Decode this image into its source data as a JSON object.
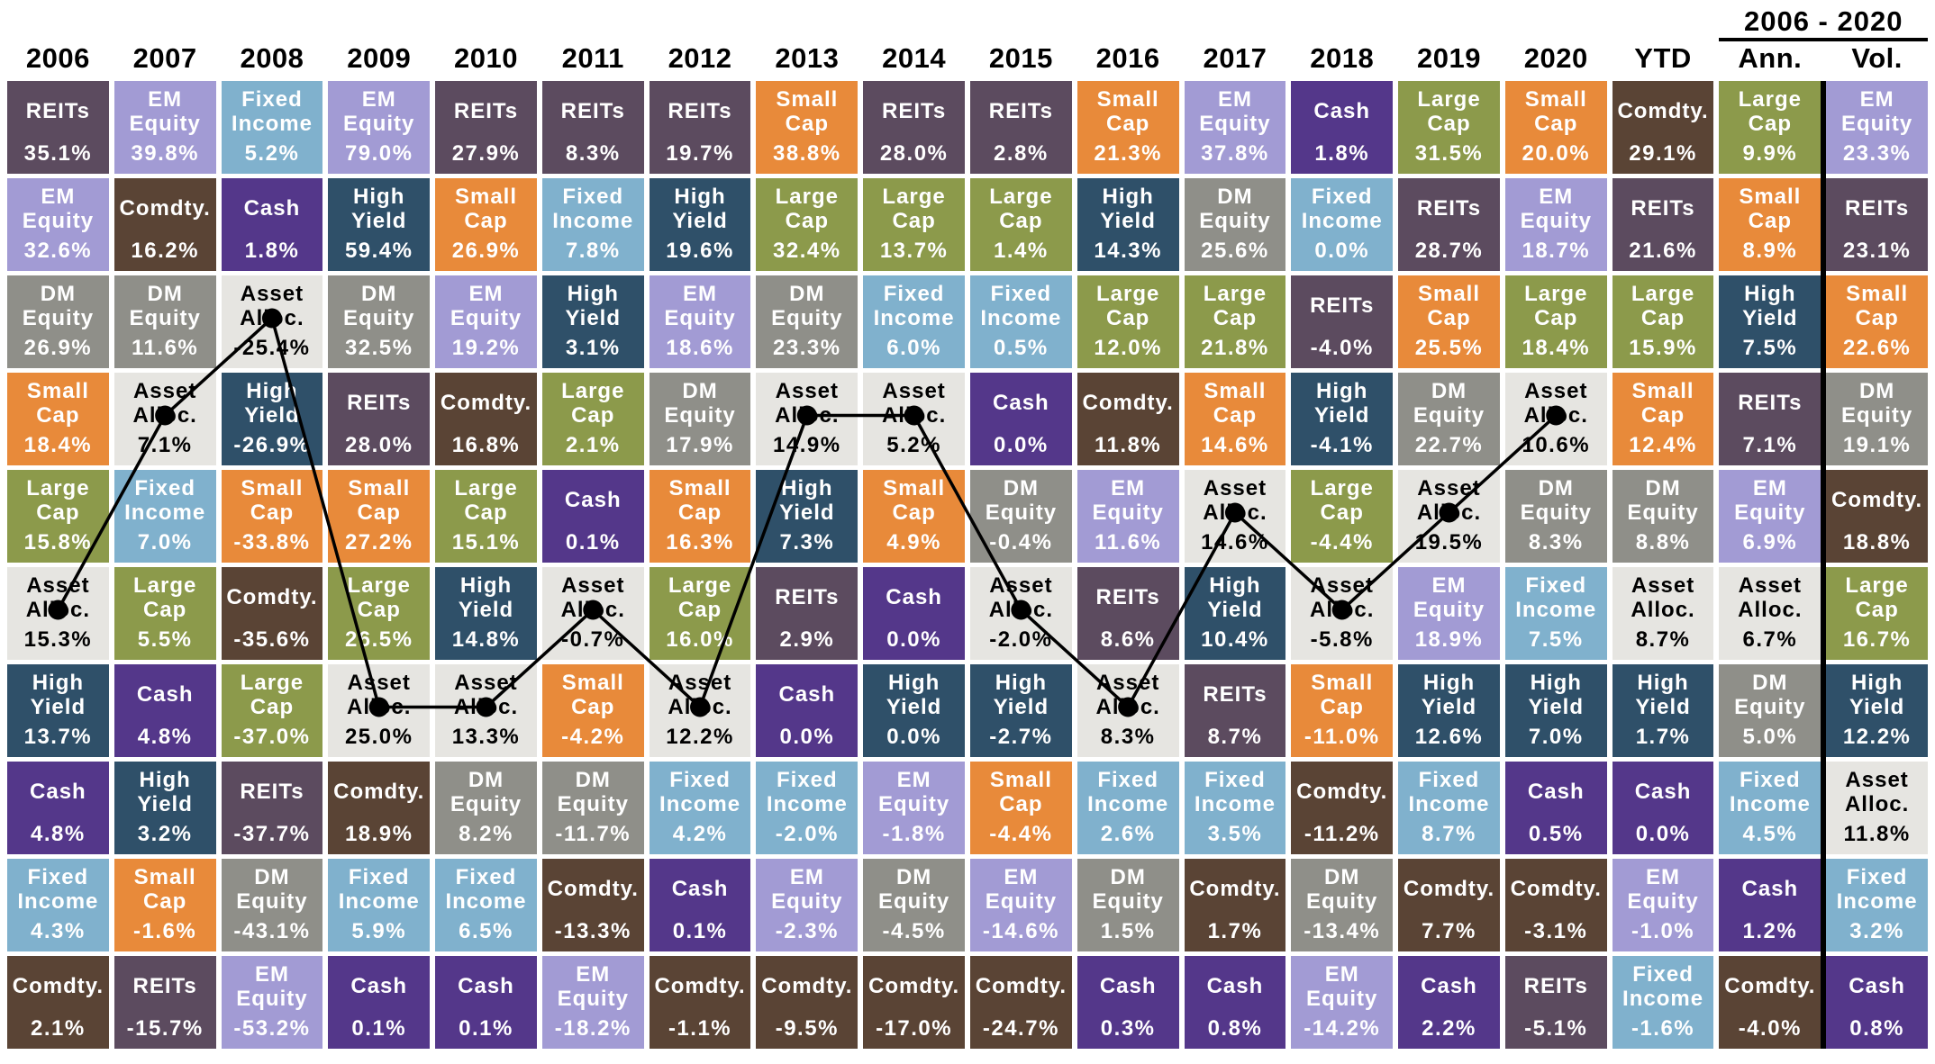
{
  "header": {
    "range_label": "2006 - 2020"
  },
  "colors": {
    "REITs": "#5C4B5F",
    "EM Equity": "#A29BD4",
    "Fixed Income": "#80B1CD",
    "Cash": "#54378A",
    "High Yield": "#2F5069",
    "Small Cap": "#E88A3A",
    "Large Cap": "#8C9A4B",
    "DM Equity": "#8F8F89",
    "Comdty.": "#5A4435",
    "Asset Alloc.": "#E6E5E1"
  },
  "text_colors": {
    "default": "#FFFFFF",
    "Asset Alloc.": "#000000"
  },
  "line_overlay": {
    "asset": "Asset Alloc.",
    "color": "#000000",
    "dot_radius": 11,
    "stroke_width": 3.5,
    "applies_to_column_type": "year"
  },
  "chart_data": {
    "type": "table",
    "description_visible_labels": [
      "2006 - 2020",
      "YTD",
      "Ann.",
      "Vol."
    ],
    "columns": [
      {
        "label": "2006",
        "type": "year",
        "cells": [
          {
            "asset": "REITs",
            "value": "35.1%"
          },
          {
            "asset": "EM Equity",
            "value": "32.6%"
          },
          {
            "asset": "DM Equity",
            "value": "26.9%"
          },
          {
            "asset": "Small Cap",
            "value": "18.4%"
          },
          {
            "asset": "Large Cap",
            "value": "15.8%"
          },
          {
            "asset": "Asset Alloc.",
            "value": "15.3%"
          },
          {
            "asset": "High Yield",
            "value": "13.7%"
          },
          {
            "asset": "Cash",
            "value": "4.8%"
          },
          {
            "asset": "Fixed Income",
            "value": "4.3%"
          },
          {
            "asset": "Comdty.",
            "value": "2.1%"
          }
        ]
      },
      {
        "label": "2007",
        "type": "year",
        "cells": [
          {
            "asset": "EM Equity",
            "value": "39.8%"
          },
          {
            "asset": "Comdty.",
            "value": "16.2%"
          },
          {
            "asset": "DM Equity",
            "value": "11.6%"
          },
          {
            "asset": "Asset Alloc.",
            "value": "7.1%"
          },
          {
            "asset": "Fixed Income",
            "value": "7.0%"
          },
          {
            "asset": "Large Cap",
            "value": "5.5%"
          },
          {
            "asset": "Cash",
            "value": "4.8%"
          },
          {
            "asset": "High Yield",
            "value": "3.2%"
          },
          {
            "asset": "Small Cap",
            "value": "-1.6%"
          },
          {
            "asset": "REITs",
            "value": "-15.7%"
          }
        ]
      },
      {
        "label": "2008",
        "type": "year",
        "cells": [
          {
            "asset": "Fixed Income",
            "value": "5.2%"
          },
          {
            "asset": "Cash",
            "value": "1.8%"
          },
          {
            "asset": "Asset Alloc.",
            "value": "-25.4%"
          },
          {
            "asset": "High Yield",
            "value": "-26.9%"
          },
          {
            "asset": "Small Cap",
            "value": "-33.8%"
          },
          {
            "asset": "Comdty.",
            "value": "-35.6%"
          },
          {
            "asset": "Large Cap",
            "value": "-37.0%"
          },
          {
            "asset": "REITs",
            "value": "-37.7%"
          },
          {
            "asset": "DM Equity",
            "value": "-43.1%"
          },
          {
            "asset": "EM Equity",
            "value": "-53.2%"
          }
        ]
      },
      {
        "label": "2009",
        "type": "year",
        "cells": [
          {
            "asset": "EM Equity",
            "value": "79.0%"
          },
          {
            "asset": "High Yield",
            "value": "59.4%"
          },
          {
            "asset": "DM Equity",
            "value": "32.5%"
          },
          {
            "asset": "REITs",
            "value": "28.0%"
          },
          {
            "asset": "Small Cap",
            "value": "27.2%"
          },
          {
            "asset": "Large Cap",
            "value": "26.5%"
          },
          {
            "asset": "Asset Alloc.",
            "value": "25.0%"
          },
          {
            "asset": "Comdty.",
            "value": "18.9%"
          },
          {
            "asset": "Fixed Income",
            "value": "5.9%"
          },
          {
            "asset": "Cash",
            "value": "0.1%"
          }
        ]
      },
      {
        "label": "2010",
        "type": "year",
        "cells": [
          {
            "asset": "REITs",
            "value": "27.9%"
          },
          {
            "asset": "Small Cap",
            "value": "26.9%"
          },
          {
            "asset": "EM Equity",
            "value": "19.2%"
          },
          {
            "asset": "Comdty.",
            "value": "16.8%"
          },
          {
            "asset": "Large Cap",
            "value": "15.1%"
          },
          {
            "asset": "High Yield",
            "value": "14.8%"
          },
          {
            "asset": "Asset Alloc.",
            "value": "13.3%"
          },
          {
            "asset": "DM Equity",
            "value": "8.2%"
          },
          {
            "asset": "Fixed Income",
            "value": "6.5%"
          },
          {
            "asset": "Cash",
            "value": "0.1%"
          }
        ]
      },
      {
        "label": "2011",
        "type": "year",
        "cells": [
          {
            "asset": "REITs",
            "value": "8.3%"
          },
          {
            "asset": "Fixed Income",
            "value": "7.8%"
          },
          {
            "asset": "High Yield",
            "value": "3.1%"
          },
          {
            "asset": "Large Cap",
            "value": "2.1%"
          },
          {
            "asset": "Cash",
            "value": "0.1%"
          },
          {
            "asset": "Asset Alloc.",
            "value": "-0.7%"
          },
          {
            "asset": "Small Cap",
            "value": "-4.2%"
          },
          {
            "asset": "DM Equity",
            "value": "-11.7%"
          },
          {
            "asset": "Comdty.",
            "value": "-13.3%"
          },
          {
            "asset": "EM Equity",
            "value": "-18.2%"
          }
        ]
      },
      {
        "label": "2012",
        "type": "year",
        "cells": [
          {
            "asset": "REITs",
            "value": "19.7%"
          },
          {
            "asset": "High Yield",
            "value": "19.6%"
          },
          {
            "asset": "EM Equity",
            "value": "18.6%"
          },
          {
            "asset": "DM Equity",
            "value": "17.9%"
          },
          {
            "asset": "Small Cap",
            "value": "16.3%"
          },
          {
            "asset": "Large Cap",
            "value": "16.0%"
          },
          {
            "asset": "Asset Alloc.",
            "value": "12.2%"
          },
          {
            "asset": "Fixed Income",
            "value": "4.2%"
          },
          {
            "asset": "Cash",
            "value": "0.1%"
          },
          {
            "asset": "Comdty.",
            "value": "-1.1%"
          }
        ]
      },
      {
        "label": "2013",
        "type": "year",
        "cells": [
          {
            "asset": "Small Cap",
            "value": "38.8%"
          },
          {
            "asset": "Large Cap",
            "value": "32.4%"
          },
          {
            "asset": "DM Equity",
            "value": "23.3%"
          },
          {
            "asset": "Asset Alloc.",
            "value": "14.9%"
          },
          {
            "asset": "High Yield",
            "value": "7.3%"
          },
          {
            "asset": "REITs",
            "value": "2.9%"
          },
          {
            "asset": "Cash",
            "value": "0.0%"
          },
          {
            "asset": "Fixed Income",
            "value": "-2.0%"
          },
          {
            "asset": "EM Equity",
            "value": "-2.3%"
          },
          {
            "asset": "Comdty.",
            "value": "-9.5%"
          }
        ]
      },
      {
        "label": "2014",
        "type": "year",
        "cells": [
          {
            "asset": "REITs",
            "value": "28.0%"
          },
          {
            "asset": "Large Cap",
            "value": "13.7%"
          },
          {
            "asset": "Fixed Income",
            "value": "6.0%"
          },
          {
            "asset": "Asset Alloc.",
            "value": "5.2%"
          },
          {
            "asset": "Small Cap",
            "value": "4.9%"
          },
          {
            "asset": "Cash",
            "value": "0.0%"
          },
          {
            "asset": "High Yield",
            "value": "0.0%"
          },
          {
            "asset": "EM Equity",
            "value": "-1.8%"
          },
          {
            "asset": "DM Equity",
            "value": "-4.5%"
          },
          {
            "asset": "Comdty.",
            "value": "-17.0%"
          }
        ]
      },
      {
        "label": "2015",
        "type": "year",
        "cells": [
          {
            "asset": "REITs",
            "value": "2.8%"
          },
          {
            "asset": "Large Cap",
            "value": "1.4%"
          },
          {
            "asset": "Fixed Income",
            "value": "0.5%"
          },
          {
            "asset": "Cash",
            "value": "0.0%"
          },
          {
            "asset": "DM Equity",
            "value": "-0.4%"
          },
          {
            "asset": "Asset Alloc.",
            "value": "-2.0%"
          },
          {
            "asset": "High Yield",
            "value": "-2.7%"
          },
          {
            "asset": "Small Cap",
            "value": "-4.4%"
          },
          {
            "asset": "EM Equity",
            "value": "-14.6%"
          },
          {
            "asset": "Comdty.",
            "value": "-24.7%"
          }
        ]
      },
      {
        "label": "2016",
        "type": "year",
        "cells": [
          {
            "asset": "Small Cap",
            "value": "21.3%"
          },
          {
            "asset": "High Yield",
            "value": "14.3%"
          },
          {
            "asset": "Large Cap",
            "value": "12.0%"
          },
          {
            "asset": "Comdty.",
            "value": "11.8%"
          },
          {
            "asset": "EM Equity",
            "value": "11.6%"
          },
          {
            "asset": "REITs",
            "value": "8.6%"
          },
          {
            "asset": "Asset Alloc.",
            "value": "8.3%"
          },
          {
            "asset": "Fixed Income",
            "value": "2.6%"
          },
          {
            "asset": "DM Equity",
            "value": "1.5%"
          },
          {
            "asset": "Cash",
            "value": "0.3%"
          }
        ]
      },
      {
        "label": "2017",
        "type": "year",
        "cells": [
          {
            "asset": "EM Equity",
            "value": "37.8%"
          },
          {
            "asset": "DM Equity",
            "value": "25.6%"
          },
          {
            "asset": "Large Cap",
            "value": "21.8%"
          },
          {
            "asset": "Small Cap",
            "value": "14.6%"
          },
          {
            "asset": "Asset Alloc.",
            "value": "14.6%"
          },
          {
            "asset": "High Yield",
            "value": "10.4%"
          },
          {
            "asset": "REITs",
            "value": "8.7%"
          },
          {
            "asset": "Fixed Income",
            "value": "3.5%"
          },
          {
            "asset": "Comdty.",
            "value": "1.7%"
          },
          {
            "asset": "Cash",
            "value": "0.8%"
          }
        ]
      },
      {
        "label": "2018",
        "type": "year",
        "cells": [
          {
            "asset": "Cash",
            "value": "1.8%"
          },
          {
            "asset": "Fixed Income",
            "value": "0.0%"
          },
          {
            "asset": "REITs",
            "value": "-4.0%"
          },
          {
            "asset": "High Yield",
            "value": "-4.1%"
          },
          {
            "asset": "Large Cap",
            "value": "-4.4%"
          },
          {
            "asset": "Asset Alloc.",
            "value": "-5.8%"
          },
          {
            "asset": "Small Cap",
            "value": "-11.0%"
          },
          {
            "asset": "Comdty.",
            "value": "-11.2%"
          },
          {
            "asset": "DM Equity",
            "value": "-13.4%"
          },
          {
            "asset": "EM Equity",
            "value": "-14.2%"
          }
        ]
      },
      {
        "label": "2019",
        "type": "year",
        "cells": [
          {
            "asset": "Large Cap",
            "value": "31.5%"
          },
          {
            "asset": "REITs",
            "value": "28.7%"
          },
          {
            "asset": "Small Cap",
            "value": "25.5%"
          },
          {
            "asset": "DM Equity",
            "value": "22.7%"
          },
          {
            "asset": "Asset Alloc.",
            "value": "19.5%"
          },
          {
            "asset": "EM Equity",
            "value": "18.9%"
          },
          {
            "asset": "High Yield",
            "value": "12.6%"
          },
          {
            "asset": "Fixed Income",
            "value": "8.7%"
          },
          {
            "asset": "Comdty.",
            "value": "7.7%"
          },
          {
            "asset": "Cash",
            "value": "2.2%"
          }
        ]
      },
      {
        "label": "2020",
        "type": "year",
        "cells": [
          {
            "asset": "Small Cap",
            "value": "20.0%"
          },
          {
            "asset": "EM Equity",
            "value": "18.7%"
          },
          {
            "asset": "Large Cap",
            "value": "18.4%"
          },
          {
            "asset": "Asset Alloc.",
            "value": "10.6%"
          },
          {
            "asset": "DM Equity",
            "value": "8.3%"
          },
          {
            "asset": "Fixed Income",
            "value": "7.5%"
          },
          {
            "asset": "High Yield",
            "value": "7.0%"
          },
          {
            "asset": "Cash",
            "value": "0.5%"
          },
          {
            "asset": "Comdty.",
            "value": "-3.1%"
          },
          {
            "asset": "REITs",
            "value": "-5.1%"
          }
        ]
      },
      {
        "label": "YTD",
        "type": "ytd",
        "cells": [
          {
            "asset": "Comdty.",
            "value": "29.1%"
          },
          {
            "asset": "REITs",
            "value": "21.6%"
          },
          {
            "asset": "Large Cap",
            "value": "15.9%"
          },
          {
            "asset": "Small Cap",
            "value": "12.4%"
          },
          {
            "asset": "DM Equity",
            "value": "8.8%"
          },
          {
            "asset": "Asset Alloc.",
            "value": "8.7%"
          },
          {
            "asset": "High Yield",
            "value": "1.7%"
          },
          {
            "asset": "Cash",
            "value": "0.0%"
          },
          {
            "asset": "EM Equity",
            "value": "-1.0%"
          },
          {
            "asset": "Fixed Income",
            "value": "-1.6%"
          }
        ]
      },
      {
        "label": "Ann.",
        "type": "summary",
        "cells": [
          {
            "asset": "Large Cap",
            "value": "9.9%"
          },
          {
            "asset": "Small Cap",
            "value": "8.9%"
          },
          {
            "asset": "High Yield",
            "value": "7.5%"
          },
          {
            "asset": "REITs",
            "value": "7.1%"
          },
          {
            "asset": "EM Equity",
            "value": "6.9%"
          },
          {
            "asset": "Asset Alloc.",
            "value": "6.7%"
          },
          {
            "asset": "DM Equity",
            "value": "5.0%"
          },
          {
            "asset": "Fixed Income",
            "value": "4.5%"
          },
          {
            "asset": "Cash",
            "value": "1.2%"
          },
          {
            "asset": "Comdty.",
            "value": "-4.0%"
          }
        ]
      },
      {
        "label": "Vol.",
        "type": "summary",
        "cells": [
          {
            "asset": "EM Equity",
            "value": "23.3%"
          },
          {
            "asset": "REITs",
            "value": "23.1%"
          },
          {
            "asset": "Small Cap",
            "value": "22.6%"
          },
          {
            "asset": "DM Equity",
            "value": "19.1%"
          },
          {
            "asset": "Comdty.",
            "value": "18.8%"
          },
          {
            "asset": "Large Cap",
            "value": "16.7%"
          },
          {
            "asset": "High Yield",
            "value": "12.2%"
          },
          {
            "asset": "Asset Alloc.",
            "value": "11.8%"
          },
          {
            "asset": "Fixed Income",
            "value": "3.2%"
          },
          {
            "asset": "Cash",
            "value": "0.8%"
          }
        ]
      }
    ]
  }
}
